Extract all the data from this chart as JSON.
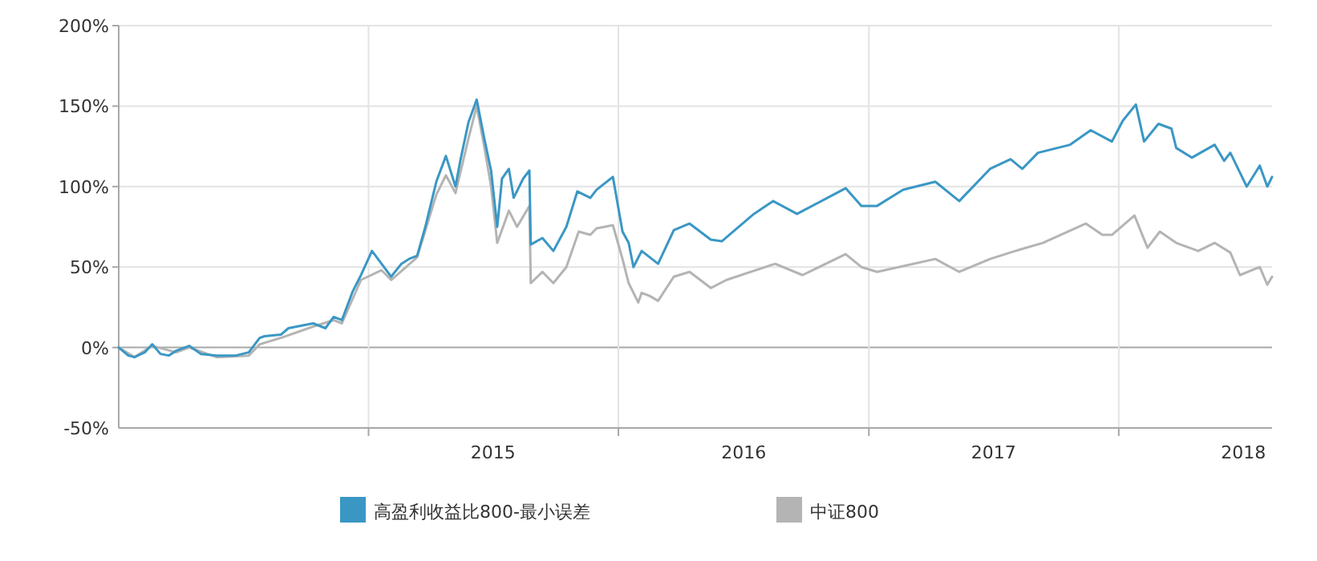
{
  "chart_data": {
    "type": "line",
    "xlim": [
      "2014-01-01",
      "2018-08-13"
    ],
    "xticks": [
      {
        "value": "2015-01-01",
        "label": null
      },
      {
        "value": "2015-07-02",
        "label": "2015"
      },
      {
        "value": "2016-01-01",
        "label": null
      },
      {
        "value": "2016-07-02",
        "label": "2016"
      },
      {
        "value": "2017-01-01",
        "label": null
      },
      {
        "value": "2017-07-02",
        "label": "2017"
      },
      {
        "value": "2018-01-01",
        "label": null
      },
      {
        "value": "2018-07-02",
        "label": "2018"
      }
    ],
    "ylim": [
      -50,
      200
    ],
    "yticks": [
      {
        "value": -50,
        "label": "-50%"
      },
      {
        "value": 0,
        "label": "0%"
      },
      {
        "value": 50,
        "label": "50%"
      },
      {
        "value": 100,
        "label": "100%"
      },
      {
        "value": 150,
        "label": "150%"
      },
      {
        "value": 200,
        "label": "200%"
      }
    ],
    "grid": true,
    "legend": "bottom",
    "line_style": "solid",
    "marker": "none",
    "series": [
      {
        "name": "高盈利收益比800-最小误差",
        "color": "#3a97c4",
        "x": [
          "2014-01-01",
          "2014-01-15",
          "2014-01-24",
          "2014-02-08",
          "2014-02-19",
          "2014-03-03",
          "2014-03-15",
          "2014-03-26",
          "2014-04-14",
          "2014-05-01",
          "2014-05-24",
          "2014-06-21",
          "2014-07-10",
          "2014-07-26",
          "2014-08-02",
          "2014-08-26",
          "2014-09-06",
          "2014-10-12",
          "2014-10-30",
          "2014-11-11",
          "2014-11-23",
          "2014-12-09",
          "2014-12-21",
          "2015-01-06",
          "2015-01-20",
          "2015-02-03",
          "2015-02-18",
          "2015-03-01",
          "2015-03-13",
          "2015-03-25",
          "2015-04-10",
          "2015-04-24",
          "2015-05-08",
          "2015-05-15",
          "2015-05-27",
          "2015-06-08",
          "2015-06-19",
          "2015-06-29",
          "2015-07-08",
          "2015-07-15",
          "2015-07-25",
          "2015-08-01",
          "2015-08-15",
          "2015-08-24",
          "2015-08-26",
          "2015-09-12",
          "2015-09-28",
          "2015-10-17",
          "2015-11-02",
          "2015-11-21",
          "2015-11-30",
          "2015-12-24",
          "2016-01-07",
          "2016-01-16",
          "2016-01-23",
          "2016-02-04",
          "2016-02-28",
          "2016-03-22",
          "2016-04-14",
          "2016-05-15",
          "2016-05-31",
          "2016-07-17",
          "2016-08-14",
          "2016-09-18",
          "2016-11-28",
          "2016-12-21",
          "2017-01-13",
          "2017-02-20",
          "2017-04-08",
          "2017-05-13",
          "2017-06-27",
          "2017-07-27",
          "2017-08-13",
          "2017-09-05",
          "2017-10-22",
          "2017-11-21",
          "2017-12-22",
          "2018-01-07",
          "2018-01-26",
          "2018-02-07",
          "2018-02-28",
          "2018-03-19",
          "2018-03-26",
          "2018-04-18",
          "2018-05-21",
          "2018-06-04",
          "2018-06-13",
          "2018-07-07",
          "2018-07-26",
          "2018-08-06",
          "2018-08-13"
        ],
        "values": [
          0,
          -5,
          -6,
          -3,
          2,
          -4,
          -5,
          -2,
          1,
          -4,
          -5,
          -5,
          -3,
          6,
          7,
          8,
          12,
          15,
          12,
          19,
          17,
          35,
          45,
          60,
          52,
          44,
          52,
          55,
          57,
          75,
          103,
          119,
          100,
          116,
          140,
          154,
          130,
          110,
          75,
          105,
          111,
          93,
          105,
          110,
          64,
          68,
          60,
          75,
          97,
          93,
          98,
          106,
          72,
          65,
          50,
          60,
          52,
          73,
          77,
          67,
          66,
          83,
          91,
          83,
          99,
          88,
          88,
          98,
          103,
          91,
          111,
          117,
          111,
          121,
          126,
          135,
          128,
          141,
          151,
          128,
          139,
          136,
          124,
          118,
          126,
          116,
          121,
          100,
          113,
          100,
          106
        ]
      },
      {
        "name": "中证800",
        "color": "#b4b4b4",
        "x": [
          "2014-01-01",
          "2014-01-24",
          "2014-02-19",
          "2014-03-26",
          "2014-04-14",
          "2014-05-24",
          "2014-07-10",
          "2014-07-26",
          "2014-08-26",
          "2014-10-12",
          "2014-11-11",
          "2014-11-23",
          "2014-12-21",
          "2015-01-20",
          "2015-02-03",
          "2015-03-13",
          "2015-04-10",
          "2015-04-24",
          "2015-05-08",
          "2015-05-27",
          "2015-06-08",
          "2015-06-19",
          "2015-06-29",
          "2015-07-08",
          "2015-07-25",
          "2015-08-06",
          "2015-08-24",
          "2015-08-26",
          "2015-09-12",
          "2015-09-28",
          "2015-10-17",
          "2015-11-04",
          "2015-11-21",
          "2015-11-30",
          "2015-12-24",
          "2016-01-07",
          "2016-01-16",
          "2016-01-30",
          "2016-02-04",
          "2016-02-16",
          "2016-02-28",
          "2016-03-22",
          "2016-04-14",
          "2016-05-15",
          "2016-06-07",
          "2016-08-17",
          "2016-09-26",
          "2016-11-28",
          "2016-12-21",
          "2017-01-13",
          "2017-04-08",
          "2017-05-13",
          "2017-06-27",
          "2017-08-03",
          "2017-09-12",
          "2017-11-14",
          "2017-12-08",
          "2017-12-22",
          "2018-01-24",
          "2018-02-12",
          "2018-03-02",
          "2018-03-26",
          "2018-04-27",
          "2018-05-21",
          "2018-06-13",
          "2018-06-27",
          "2018-07-26",
          "2018-08-06",
          "2018-08-13"
        ],
        "values": [
          0,
          -6,
          1,
          -3,
          0,
          -6,
          -5,
          2,
          6,
          13,
          17,
          15,
          42,
          48,
          42,
          56,
          95,
          107,
          96,
          130,
          150,
          125,
          100,
          65,
          85,
          75,
          88,
          40,
          47,
          40,
          50,
          72,
          70,
          74,
          76,
          55,
          40,
          28,
          34,
          32,
          29,
          44,
          47,
          37,
          42,
          52,
          45,
          58,
          50,
          47,
          55,
          47,
          55,
          60,
          65,
          77,
          70,
          70,
          82,
          62,
          72,
          65,
          60,
          65,
          59,
          45,
          50,
          39,
          44
        ]
      }
    ]
  }
}
